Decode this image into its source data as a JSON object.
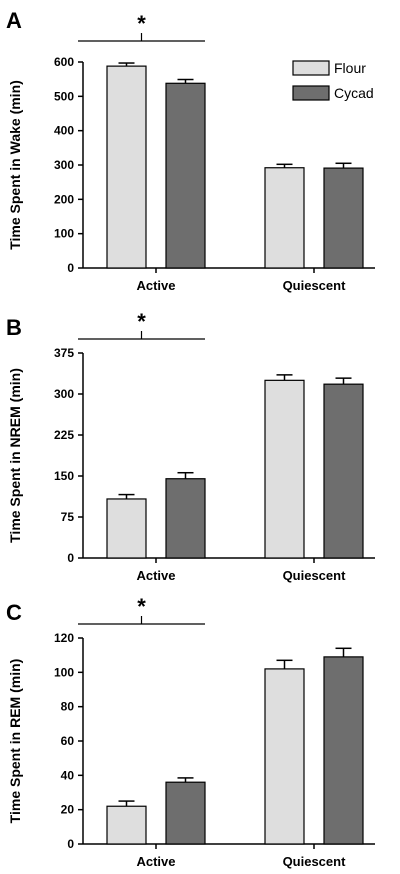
{
  "chart_data": [
    {
      "type": "bar",
      "panel": "A",
      "ylabel": "Time Spent in Wake (min)",
      "ylim": [
        0,
        600
      ],
      "yticks": [
        0,
        100,
        200,
        300,
        400,
        500,
        600
      ],
      "categories": [
        "Active",
        "Quiescent"
      ],
      "series": [
        {
          "name": "Flour",
          "values": [
            588,
            292
          ],
          "errors": [
            9,
            10
          ]
        },
        {
          "name": "Cycad",
          "values": [
            538,
            291
          ],
          "errors": [
            11,
            14
          ]
        }
      ],
      "significance": [
        {
          "category": "Active",
          "label": "*"
        }
      ],
      "legend": "top-right"
    },
    {
      "type": "bar",
      "panel": "B",
      "ylabel": "Time  Spent in NREM (min)",
      "ylim": [
        0,
        375
      ],
      "yticks": [
        0,
        75,
        150,
        225,
        300,
        375
      ],
      "categories": [
        "Active",
        "Quiescent"
      ],
      "series": [
        {
          "name": "Flour",
          "values": [
            108,
            325
          ],
          "errors": [
            8,
            10
          ]
        },
        {
          "name": "Cycad",
          "values": [
            145,
            318
          ],
          "errors": [
            11,
            11
          ]
        }
      ],
      "significance": [
        {
          "category": "Active",
          "label": "*"
        }
      ]
    },
    {
      "type": "bar",
      "panel": "C",
      "ylabel": "Time Spent in REM (min)",
      "ylim": [
        0,
        120
      ],
      "yticks": [
        0,
        20,
        40,
        60,
        80,
        100,
        120
      ],
      "categories": [
        "Active",
        "Quiescent"
      ],
      "series": [
        {
          "name": "Flour",
          "values": [
            22,
            102
          ],
          "errors": [
            3,
            5
          ]
        },
        {
          "name": "Cycad",
          "values": [
            36,
            109
          ],
          "errors": [
            2.5,
            5
          ]
        }
      ],
      "significance": [
        {
          "category": "Active",
          "label": "*"
        }
      ]
    }
  ],
  "colors": {
    "flour": "#dedede",
    "cycad": "#6e6e6e",
    "stroke": "#000000"
  }
}
